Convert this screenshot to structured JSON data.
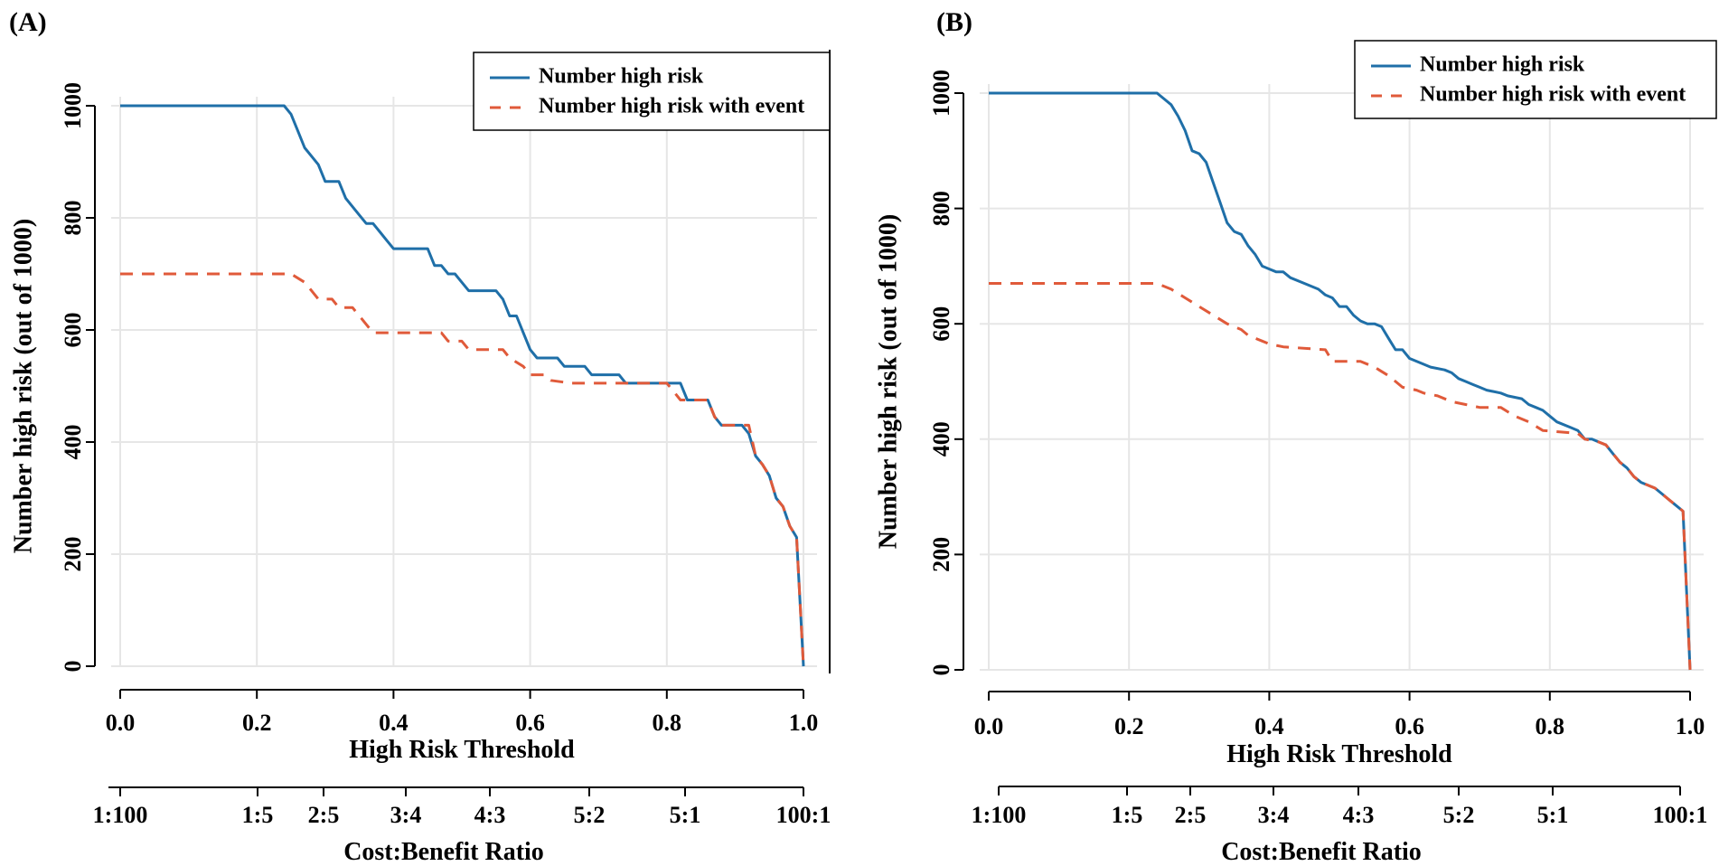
{
  "colors": {
    "number_high_risk": "#1f6fa8",
    "number_high_risk_with_event": "#e05a3a",
    "grid": "#e6e6e6",
    "axis": "#000000"
  },
  "chart_data": [
    {
      "type": "line",
      "panel_label": "(A)",
      "xlabel": "High Risk Threshold",
      "ylabel": "Number high risk (out of 1000)",
      "secondary_xlabel": "Cost:Benefit Ratio",
      "xlim": [
        0,
        1
      ],
      "ylim": [
        0,
        1000
      ],
      "x_ticks": [
        "0.0",
        "0.2",
        "0.4",
        "0.6",
        "0.8",
        "1.0"
      ],
      "y_ticks": [
        "0",
        "200",
        "400",
        "600",
        "800",
        "1000"
      ],
      "ratio_ticks": [
        "1:100",
        "1:5",
        "2:5",
        "3:4",
        "4:3",
        "5:2",
        "5:1",
        "100:1"
      ],
      "grid": true,
      "legend": {
        "position": "top-right",
        "entries": [
          "Number high risk",
          "Number high risk with event"
        ]
      },
      "series": [
        {
          "name": "Number high risk",
          "style": "solid",
          "points": [
            [
              0,
              1000
            ],
            [
              0.24,
              1000
            ],
            [
              0.25,
              985
            ],
            [
              0.26,
              955
            ],
            [
              0.27,
              925
            ],
            [
              0.28,
              910
            ],
            [
              0.29,
              895
            ],
            [
              0.3,
              865
            ],
            [
              0.32,
              865
            ],
            [
              0.33,
              835
            ],
            [
              0.34,
              820
            ],
            [
              0.35,
              805
            ],
            [
              0.36,
              790
            ],
            [
              0.37,
              790
            ],
            [
              0.38,
              775
            ],
            [
              0.39,
              760
            ],
            [
              0.4,
              745
            ],
            [
              0.45,
              745
            ],
            [
              0.46,
              715
            ],
            [
              0.47,
              715
            ],
            [
              0.48,
              700
            ],
            [
              0.49,
              700
            ],
            [
              0.5,
              685
            ],
            [
              0.51,
              670
            ],
            [
              0.55,
              670
            ],
            [
              0.56,
              655
            ],
            [
              0.57,
              625
            ],
            [
              0.58,
              625
            ],
            [
              0.59,
              595
            ],
            [
              0.6,
              565
            ],
            [
              0.61,
              550
            ],
            [
              0.64,
              550
            ],
            [
              0.65,
              535
            ],
            [
              0.68,
              535
            ],
            [
              0.69,
              520
            ],
            [
              0.73,
              520
            ],
            [
              0.74,
              505
            ],
            [
              0.82,
              505
            ],
            [
              0.83,
              475
            ],
            [
              0.86,
              475
            ],
            [
              0.87,
              445
            ],
            [
              0.88,
              430
            ],
            [
              0.91,
              430
            ],
            [
              0.92,
              415
            ],
            [
              0.93,
              375
            ],
            [
              0.94,
              360
            ],
            [
              0.95,
              340
            ],
            [
              0.96,
              300
            ],
            [
              0.97,
              285
            ],
            [
              0.98,
              250
            ],
            [
              0.99,
              230
            ],
            [
              1.0,
              0
            ]
          ]
        },
        {
          "name": "Number high risk with event",
          "style": "dashed",
          "points": [
            [
              0,
              700
            ],
            [
              0.25,
              700
            ],
            [
              0.27,
              685
            ],
            [
              0.28,
              670
            ],
            [
              0.29,
              655
            ],
            [
              0.31,
              655
            ],
            [
              0.32,
              640
            ],
            [
              0.34,
              640
            ],
            [
              0.35,
              625
            ],
            [
              0.36,
              610
            ],
            [
              0.37,
              595
            ],
            [
              0.47,
              595
            ],
            [
              0.48,
              580
            ],
            [
              0.5,
              580
            ],
            [
              0.51,
              565
            ],
            [
              0.56,
              565
            ],
            [
              0.57,
              550
            ],
            [
              0.59,
              535
            ],
            [
              0.6,
              520
            ],
            [
              0.62,
              520
            ],
            [
              0.63,
              510
            ],
            [
              0.66,
              505
            ],
            [
              0.8,
              505
            ],
            [
              0.81,
              490
            ],
            [
              0.82,
              475
            ],
            [
              0.86,
              475
            ],
            [
              0.87,
              445
            ],
            [
              0.88,
              430
            ],
            [
              0.92,
              430
            ],
            [
              0.93,
              375
            ],
            [
              0.94,
              360
            ],
            [
              0.95,
              340
            ],
            [
              0.96,
              300
            ],
            [
              0.97,
              285
            ],
            [
              0.98,
              250
            ],
            [
              0.99,
              230
            ],
            [
              1.0,
              0
            ]
          ]
        }
      ]
    },
    {
      "type": "line",
      "panel_label": "(B)",
      "xlabel": "High Risk Threshold",
      "ylabel": "Number high risk (out of 1000)",
      "secondary_xlabel": "Cost:Benefit Ratio",
      "xlim": [
        0,
        1
      ],
      "ylim": [
        0,
        1000
      ],
      "x_ticks": [
        "0.0",
        "0.2",
        "0.4",
        "0.6",
        "0.8",
        "1.0"
      ],
      "y_ticks": [
        "0",
        "200",
        "400",
        "600",
        "800",
        "1000"
      ],
      "ratio_ticks": [
        "1:100",
        "1:5",
        "2:5",
        "3:4",
        "4:3",
        "5:2",
        "5:1",
        "100:1"
      ],
      "grid": true,
      "legend": {
        "position": "top-right",
        "entries": [
          "Number high risk",
          "Number high risk with event"
        ]
      },
      "series": [
        {
          "name": "Number high risk",
          "style": "solid",
          "points": [
            [
              0,
              1000
            ],
            [
              0.24,
              1000
            ],
            [
              0.25,
              990
            ],
            [
              0.26,
              980
            ],
            [
              0.27,
              960
            ],
            [
              0.28,
              935
            ],
            [
              0.29,
              900
            ],
            [
              0.3,
              895
            ],
            [
              0.31,
              880
            ],
            [
              0.32,
              845
            ],
            [
              0.33,
              810
            ],
            [
              0.34,
              775
            ],
            [
              0.35,
              760
            ],
            [
              0.36,
              755
            ],
            [
              0.37,
              735
            ],
            [
              0.38,
              720
            ],
            [
              0.39,
              700
            ],
            [
              0.4,
              695
            ],
            [
              0.41,
              690
            ],
            [
              0.42,
              690
            ],
            [
              0.43,
              680
            ],
            [
              0.45,
              670
            ],
            [
              0.47,
              660
            ],
            [
              0.48,
              650
            ],
            [
              0.49,
              645
            ],
            [
              0.5,
              630
            ],
            [
              0.51,
              630
            ],
            [
              0.52,
              615
            ],
            [
              0.53,
              605
            ],
            [
              0.54,
              600
            ],
            [
              0.55,
              600
            ],
            [
              0.56,
              595
            ],
            [
              0.57,
              575
            ],
            [
              0.58,
              555
            ],
            [
              0.59,
              555
            ],
            [
              0.6,
              540
            ],
            [
              0.62,
              530
            ],
            [
              0.63,
              525
            ],
            [
              0.65,
              520
            ],
            [
              0.66,
              515
            ],
            [
              0.67,
              505
            ],
            [
              0.68,
              500
            ],
            [
              0.69,
              495
            ],
            [
              0.7,
              490
            ],
            [
              0.71,
              485
            ],
            [
              0.73,
              480
            ],
            [
              0.74,
              475
            ],
            [
              0.76,
              470
            ],
            [
              0.77,
              460
            ],
            [
              0.78,
              455
            ],
            [
              0.79,
              450
            ],
            [
              0.8,
              440
            ],
            [
              0.81,
              430
            ],
            [
              0.83,
              420
            ],
            [
              0.84,
              415
            ],
            [
              0.85,
              400
            ],
            [
              0.86,
              400
            ],
            [
              0.87,
              395
            ],
            [
              0.88,
              390
            ],
            [
              0.89,
              375
            ],
            [
              0.9,
              360
            ],
            [
              0.91,
              350
            ],
            [
              0.92,
              335
            ],
            [
              0.93,
              325
            ],
            [
              0.95,
              315
            ],
            [
              0.96,
              305
            ],
            [
              0.97,
              295
            ],
            [
              0.98,
              285
            ],
            [
              0.99,
              275
            ],
            [
              1.0,
              0
            ]
          ]
        },
        {
          "name": "Number high risk with event",
          "style": "dashed",
          "points": [
            [
              0,
              670
            ],
            [
              0.24,
              670
            ],
            [
              0.26,
              660
            ],
            [
              0.28,
              645
            ],
            [
              0.3,
              630
            ],
            [
              0.32,
              615
            ],
            [
              0.34,
              600
            ],
            [
              0.36,
              590
            ],
            [
              0.37,
              580
            ],
            [
              0.39,
              570
            ],
            [
              0.4,
              565
            ],
            [
              0.42,
              560
            ],
            [
              0.48,
              555
            ],
            [
              0.49,
              535
            ],
            [
              0.53,
              535
            ],
            [
              0.55,
              525
            ],
            [
              0.57,
              510
            ],
            [
              0.58,
              500
            ],
            [
              0.59,
              490
            ],
            [
              0.61,
              485
            ],
            [
              0.62,
              480
            ],
            [
              0.64,
              475
            ],
            [
              0.66,
              465
            ],
            [
              0.68,
              460
            ],
            [
              0.7,
              455
            ],
            [
              0.73,
              455
            ],
            [
              0.75,
              440
            ],
            [
              0.77,
              430
            ],
            [
              0.79,
              415
            ],
            [
              0.84,
              410
            ],
            [
              0.85,
              400
            ],
            [
              0.87,
              395
            ],
            [
              0.88,
              390
            ],
            [
              0.89,
              375
            ],
            [
              0.9,
              360
            ],
            [
              0.91,
              350
            ],
            [
              0.92,
              335
            ],
            [
              0.93,
              325
            ],
            [
              0.95,
              315
            ],
            [
              0.96,
              305
            ],
            [
              0.97,
              295
            ],
            [
              0.98,
              285
            ],
            [
              0.99,
              275
            ],
            [
              1.0,
              0
            ]
          ]
        }
      ]
    }
  ]
}
